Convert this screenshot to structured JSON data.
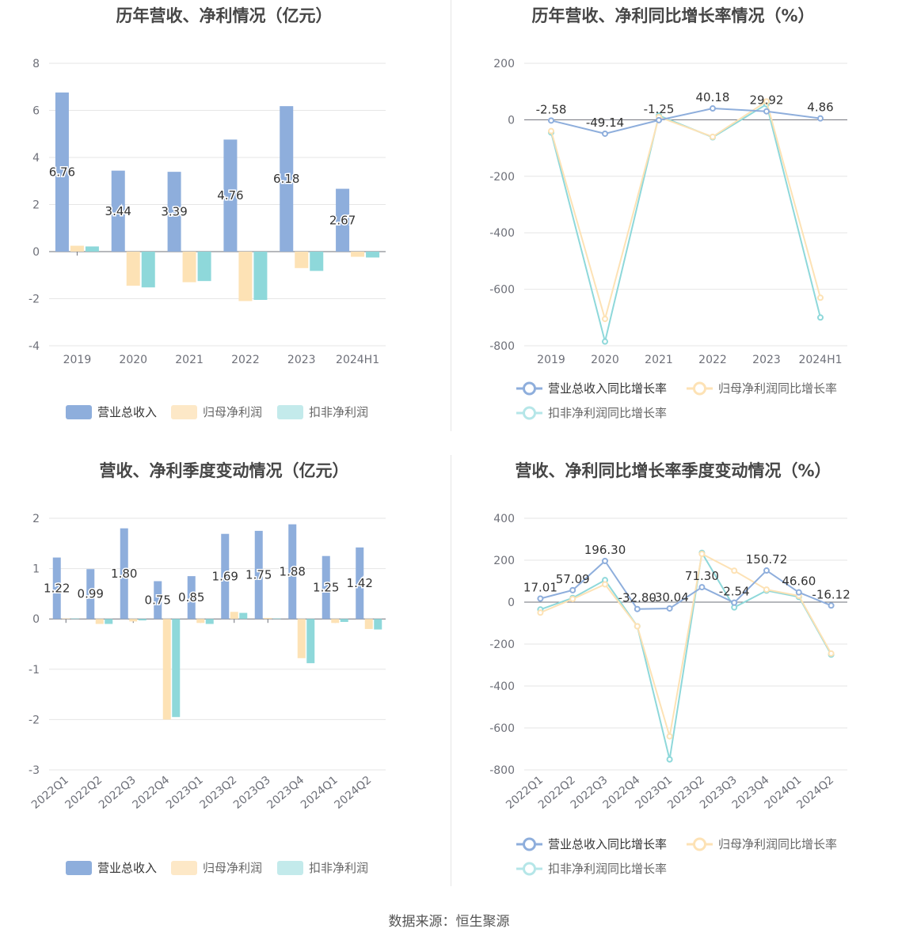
{
  "footer": "数据来源：恒生聚源",
  "legend_labels": {
    "revenue": "营业总收入",
    "net_profit": "归母净利润",
    "deducted_profit": "扣非净利润",
    "revenue_growth": "营业总收入同比增长率",
    "net_profit_growth": "归母净利润同比增长率",
    "deducted_profit_growth": "扣非净利润同比增长率"
  },
  "colors": {
    "revenue": "#8eaedc",
    "net_profit": "#fde2b5",
    "deducted_profit": "#8ed8da",
    "grid": "#e6e6e6",
    "axis": "#6e7079"
  },
  "chart_data": [
    {
      "type": "bar",
      "title": "历年营收、净利情况（亿元）",
      "categories": [
        "2019",
        "2020",
        "2021",
        "2022",
        "2023",
        "2024H1"
      ],
      "series": [
        {
          "name": "营业总收入",
          "values": [
            6.76,
            3.44,
            3.39,
            4.76,
            6.18,
            2.67
          ],
          "labels": [
            "6.76",
            "3.44",
            "3.39",
            "4.76",
            "6.18",
            "2.67"
          ]
        },
        {
          "name": "归母净利润",
          "values": [
            0.25,
            -1.45,
            -1.3,
            -2.1,
            -0.7,
            -0.22
          ]
        },
        {
          "name": "扣非净利润",
          "values": [
            0.22,
            -1.52,
            -1.25,
            -2.05,
            -0.82,
            -0.25
          ]
        }
      ],
      "ylim": [
        -4,
        8
      ],
      "yticks": [
        8,
        6,
        4,
        2,
        0,
        -2,
        -4
      ],
      "grid": true,
      "legend_position": "bottom"
    },
    {
      "type": "line",
      "title": "历年营收、净利同比增长率情况（%）",
      "categories": [
        "2019",
        "2020",
        "2021",
        "2022",
        "2023",
        "2024H1"
      ],
      "series": [
        {
          "name": "营业总收入同比增长率",
          "values": [
            -2.58,
            -49.14,
            -1.25,
            40.18,
            29.92,
            4.86
          ],
          "labels": [
            "-2.58",
            "-49.14",
            "-1.25",
            "40.18",
            "29.92",
            "4.86"
          ]
        },
        {
          "name": "归母净利润同比增长率",
          "values": [
            -40,
            -705,
            10,
            -60,
            65,
            -630
          ]
        },
        {
          "name": "扣非净利润同比增长率",
          "values": [
            -45,
            -785,
            15,
            -62,
            55,
            -700
          ]
        }
      ],
      "ylim": [
        -800,
        200
      ],
      "yticks": [
        200,
        0,
        -200,
        -400,
        -600,
        -800
      ],
      "grid": true,
      "legend_position": "bottom"
    },
    {
      "type": "bar",
      "title": "营收、净利季度变动情况（亿元）",
      "categories": [
        "2022Q1",
        "2022Q2",
        "2022Q3",
        "2022Q4",
        "2023Q1",
        "2023Q2",
        "2023Q3",
        "2023Q4",
        "2024Q1",
        "2024Q2"
      ],
      "series": [
        {
          "name": "营业总收入",
          "values": [
            1.22,
            0.99,
            1.8,
            0.75,
            0.85,
            1.69,
            1.75,
            1.88,
            1.25,
            1.42
          ],
          "labels": [
            "1.22",
            "0.99",
            "1.80",
            "0.75",
            "0.85",
            "1.69",
            "1.75",
            "1.88",
            "1.25",
            "1.42"
          ]
        },
        {
          "name": "归母净利润",
          "values": [
            0.01,
            -0.1,
            -0.05,
            -2.0,
            -0.08,
            0.14,
            0.02,
            -0.78,
            -0.08,
            -0.2
          ]
        },
        {
          "name": "扣非净利润",
          "values": [
            0.01,
            -0.1,
            -0.03,
            -1.95,
            -0.1,
            0.12,
            0.01,
            -0.88,
            -0.06,
            -0.21
          ]
        }
      ],
      "ylim": [
        -3,
        2
      ],
      "yticks": [
        2,
        1,
        0,
        -1,
        -2,
        -3
      ],
      "grid": true,
      "legend_position": "bottom"
    },
    {
      "type": "line",
      "title": "营收、净利同比增长率季度变动情况（%）",
      "categories": [
        "2022Q1",
        "2022Q2",
        "2022Q3",
        "2022Q4",
        "2023Q1",
        "2023Q2",
        "2023Q3",
        "2023Q4",
        "2024Q1",
        "2024Q2"
      ],
      "series": [
        {
          "name": "营业总收入同比增长率",
          "values": [
            17.01,
            57.09,
            196.3,
            -32.8,
            -30.04,
            71.3,
            -2.54,
            150.72,
            46.6,
            -16.12
          ],
          "labels": [
            "17.01",
            "57.09",
            "196.30",
            "-32.80",
            "-30.04",
            "71.30",
            "-2.54",
            "150.72",
            "46.60",
            "-16.12"
          ]
        },
        {
          "name": "归母净利润同比增长率",
          "values": [
            -50,
            15,
            85,
            -115,
            -640,
            230,
            150,
            60,
            30,
            -245
          ]
        },
        {
          "name": "扣非净利润同比增长率",
          "values": [
            -35,
            20,
            105,
            -115,
            -750,
            235,
            -25,
            55,
            25,
            -250
          ]
        }
      ],
      "ylim": [
        -800,
        400
      ],
      "yticks": [
        400,
        200,
        0,
        -200,
        -400,
        -600,
        -800
      ],
      "grid": true,
      "legend_position": "bottom"
    }
  ]
}
